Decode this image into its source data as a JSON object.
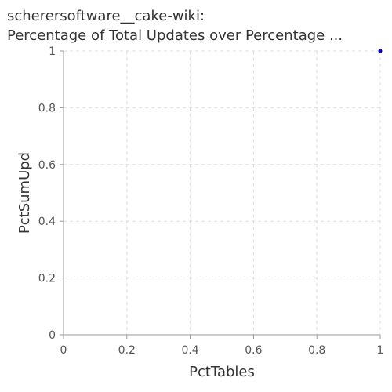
{
  "chart_data": {
    "type": "scatter",
    "title_line1": "scherersoftware__cake-wiki:",
    "title_line2": "Percentage of Total Updates over Percentage ...",
    "xlabel": "PctTables",
    "ylabel": "PctSumUpd",
    "xlim": [
      0,
      1
    ],
    "ylim": [
      0,
      1
    ],
    "x_ticks": [
      "0",
      "0.2",
      "0.4",
      "0.6",
      "0.8",
      "1"
    ],
    "y_ticks": [
      "0",
      "0.2",
      "0.4",
      "0.6",
      "0.8",
      "1"
    ],
    "grid": true,
    "series": [
      {
        "color": "#0000cc",
        "points": [
          {
            "x": 1,
            "y": 1
          }
        ]
      }
    ]
  }
}
